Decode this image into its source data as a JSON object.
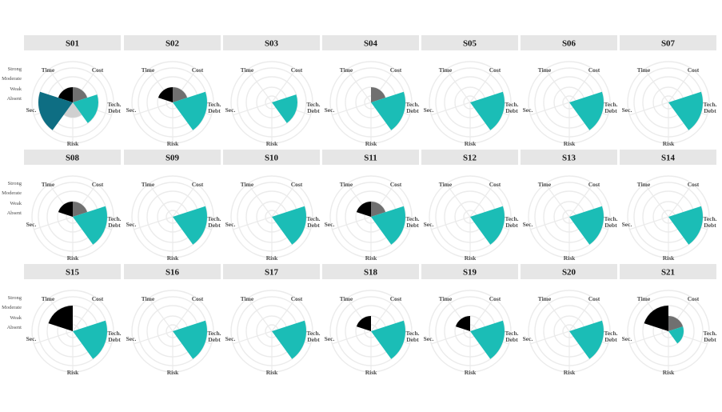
{
  "chart_data": {
    "type": "polar-bar",
    "title": "",
    "axes": [
      "Time",
      "Cost",
      "Tech. Debt",
      "Risk",
      "Sec."
    ],
    "levels": [
      "Absent",
      "Weak",
      "Moderate",
      "Strong"
    ],
    "level_values": {
      "Absent": 0,
      "Weak": 1,
      "Moderate": 2,
      "Strong": 3
    },
    "colors": {
      "Time": "#000000",
      "Cost": "#707070",
      "Tech. Debt": "#1bbdb6",
      "Risk": "#d0d0d0",
      "Sec.": "#0e6e83",
      "strip_bg": "#e6e6e6",
      "grid": "#ebebeb"
    },
    "grid": true,
    "panels": [
      {
        "id": "S01",
        "values": {
          "Time": 1,
          "Cost": 1,
          "Tech. Debt": 2,
          "Risk": 1,
          "Sec.": 3
        }
      },
      {
        "id": "S02",
        "values": {
          "Time": 1,
          "Cost": 1,
          "Tech. Debt": 3,
          "Risk": 0,
          "Sec.": 0
        }
      },
      {
        "id": "S03",
        "values": {
          "Time": 0,
          "Cost": 0,
          "Tech. Debt": 2,
          "Risk": 0,
          "Sec.": 0
        }
      },
      {
        "id": "S04",
        "values": {
          "Time": 0,
          "Cost": 1,
          "Tech. Debt": 3,
          "Risk": 0,
          "Sec.": 0
        }
      },
      {
        "id": "S05",
        "values": {
          "Time": 0,
          "Cost": 0,
          "Tech. Debt": 3,
          "Risk": 0,
          "Sec.": 0
        }
      },
      {
        "id": "S06",
        "values": {
          "Time": 0,
          "Cost": 0,
          "Tech. Debt": 3,
          "Risk": 0,
          "Sec.": 0
        }
      },
      {
        "id": "S07",
        "values": {
          "Time": 0,
          "Cost": 0,
          "Tech. Debt": 3,
          "Risk": 0,
          "Sec.": 0
        }
      },
      {
        "id": "S08",
        "values": {
          "Time": 1,
          "Cost": 1,
          "Tech. Debt": 3,
          "Risk": 0,
          "Sec.": 0
        }
      },
      {
        "id": "S09",
        "values": {
          "Time": 0,
          "Cost": 0,
          "Tech. Debt": 3,
          "Risk": 0,
          "Sec.": 0
        }
      },
      {
        "id": "S10",
        "values": {
          "Time": 0,
          "Cost": 0,
          "Tech. Debt": 3,
          "Risk": 0,
          "Sec.": 0
        }
      },
      {
        "id": "S11",
        "values": {
          "Time": 1,
          "Cost": 1,
          "Tech. Debt": 3,
          "Risk": 0,
          "Sec.": 0
        }
      },
      {
        "id": "S12",
        "values": {
          "Time": 0,
          "Cost": 0,
          "Tech. Debt": 3,
          "Risk": 0,
          "Sec.": 0
        }
      },
      {
        "id": "S13",
        "values": {
          "Time": 0,
          "Cost": 0,
          "Tech. Debt": 3,
          "Risk": 0,
          "Sec.": 0
        }
      },
      {
        "id": "S14",
        "values": {
          "Time": 0,
          "Cost": 0,
          "Tech. Debt": 3,
          "Risk": 0,
          "Sec.": 0
        }
      },
      {
        "id": "S15",
        "values": {
          "Time": 2,
          "Cost": 0,
          "Tech. Debt": 3,
          "Risk": 0,
          "Sec.": 0
        }
      },
      {
        "id": "S16",
        "values": {
          "Time": 0,
          "Cost": 0,
          "Tech. Debt": 3,
          "Risk": 0,
          "Sec.": 0
        }
      },
      {
        "id": "S17",
        "values": {
          "Time": 0,
          "Cost": 0,
          "Tech. Debt": 3,
          "Risk": 0,
          "Sec.": 0
        }
      },
      {
        "id": "S18",
        "values": {
          "Time": 1,
          "Cost": 0,
          "Tech. Debt": 3,
          "Risk": 0,
          "Sec.": 0
        }
      },
      {
        "id": "S19",
        "values": {
          "Time": 1,
          "Cost": 0,
          "Tech. Debt": 3,
          "Risk": 0,
          "Sec.": 0
        }
      },
      {
        "id": "S20",
        "values": {
          "Time": 0,
          "Cost": 0,
          "Tech. Debt": 3,
          "Risk": 0,
          "Sec.": 0
        }
      },
      {
        "id": "S21",
        "values": {
          "Time": 2,
          "Cost": 1,
          "Tech. Debt": 1,
          "Risk": 0,
          "Sec.": 0
        }
      }
    ]
  }
}
